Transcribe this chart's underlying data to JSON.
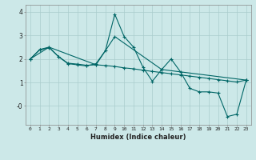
{
  "title": "",
  "xlabel": "Humidex (Indice chaleur)",
  "background_color": "#cce8e8",
  "grid_color": "#aacccc",
  "line_color": "#006666",
  "xlim": [
    -0.5,
    23.5
  ],
  "ylim": [
    -0.8,
    4.3
  ],
  "xticks": [
    0,
    1,
    2,
    3,
    4,
    5,
    6,
    7,
    8,
    9,
    10,
    11,
    12,
    13,
    14,
    15,
    16,
    17,
    18,
    19,
    20,
    21,
    22,
    23
  ],
  "yticks": [
    0,
    1,
    2,
    3,
    4
  ],
  "ytick_labels": [
    "-0",
    "1",
    "2",
    "3",
    "4"
  ],
  "series": [
    {
      "x": [
        0,
        1,
        2,
        3,
        4,
        5,
        6,
        7,
        8,
        9,
        10,
        11,
        12,
        13,
        14,
        15,
        16,
        17,
        18,
        19,
        20,
        21,
        22,
        23
      ],
      "y": [
        2.0,
        2.4,
        2.5,
        2.1,
        1.8,
        1.75,
        1.7,
        1.8,
        2.35,
        3.9,
        2.95,
        2.5,
        1.65,
        1.05,
        1.55,
        2.0,
        1.45,
        0.75,
        0.6,
        0.6,
        0.55,
        -0.45,
        -0.35,
        1.1
      ]
    },
    {
      "x": [
        0,
        1,
        2,
        3,
        4,
        5,
        6,
        7,
        8,
        9,
        10,
        11,
        12,
        13,
        14,
        15,
        16,
        17,
        18,
        19,
        20,
        21,
        22,
        23
      ],
      "y": [
        2.0,
        2.38,
        2.48,
        2.1,
        1.82,
        1.78,
        1.73,
        1.75,
        1.72,
        1.68,
        1.62,
        1.58,
        1.52,
        1.47,
        1.42,
        1.37,
        1.32,
        1.27,
        1.22,
        1.17,
        1.12,
        1.07,
        1.02,
        1.1
      ]
    },
    {
      "x": [
        0,
        2,
        7,
        9,
        14,
        23
      ],
      "y": [
        2.0,
        2.5,
        1.75,
        2.95,
        1.55,
        1.1
      ]
    }
  ]
}
